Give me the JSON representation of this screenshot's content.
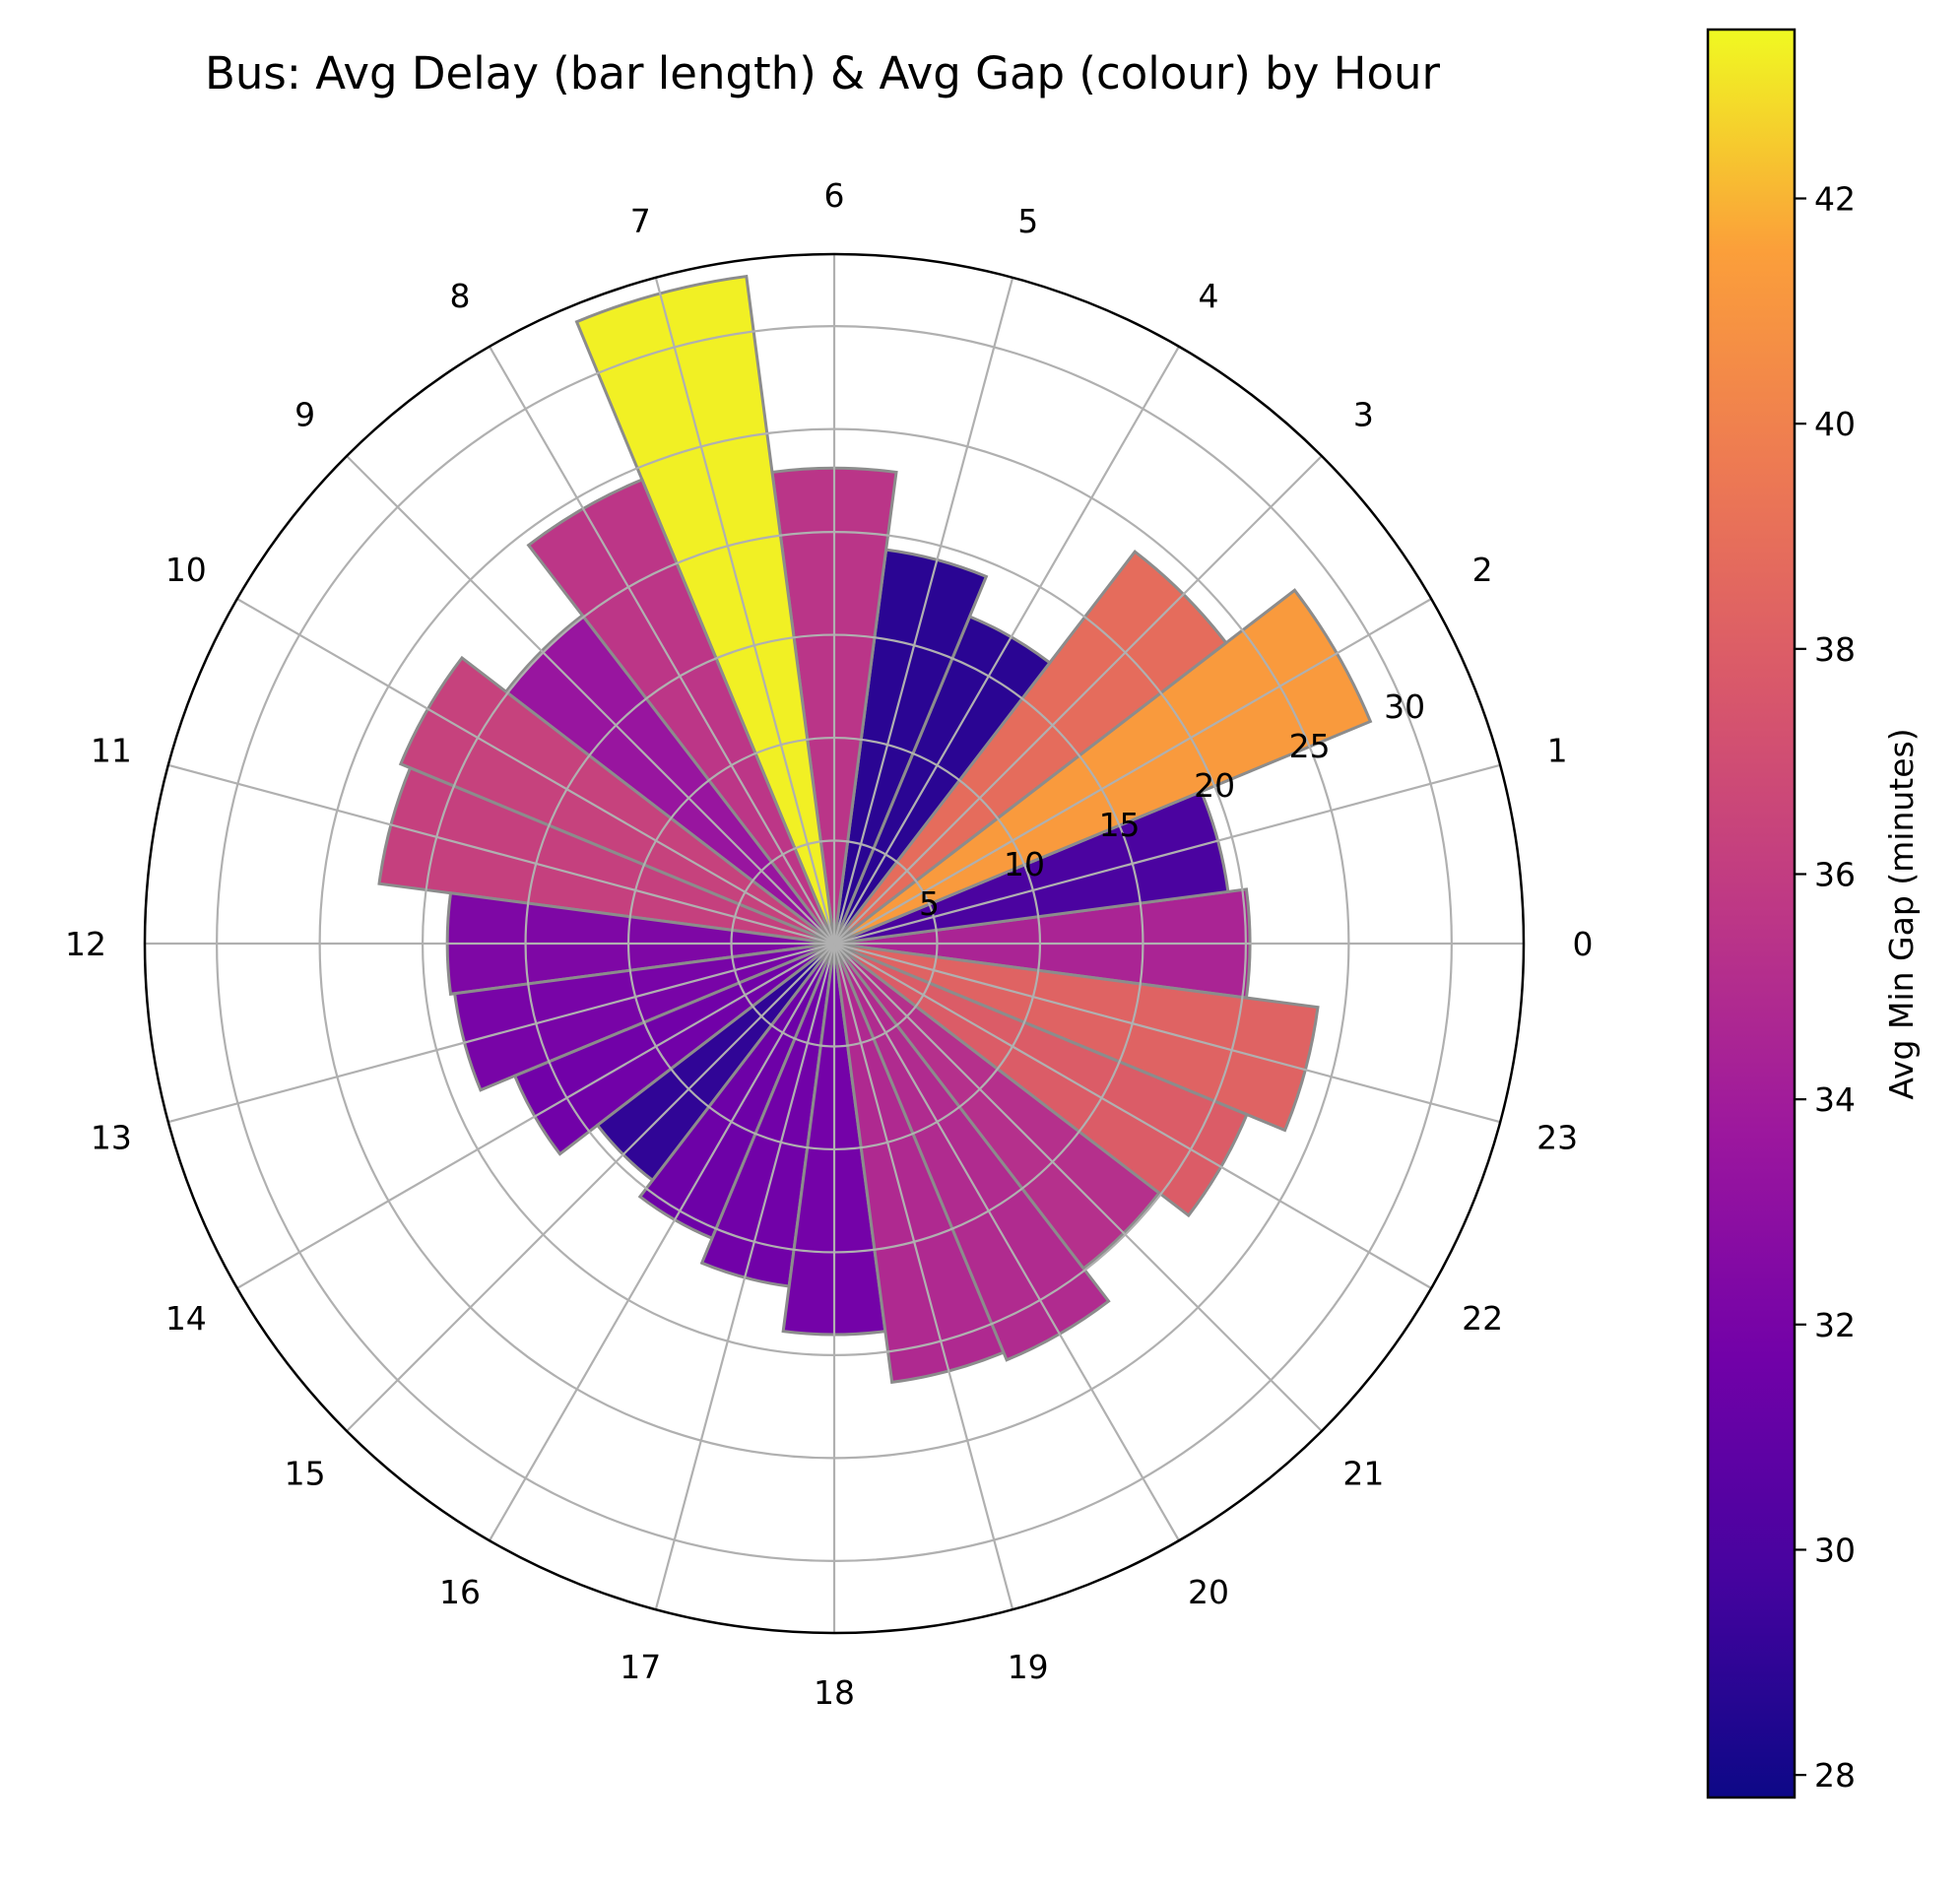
{
  "chart_data": {
    "type": "polar-bar",
    "title": "Bus: Avg Delay (bar length) & Avg Gap (colour) by Hour",
    "series": [
      {
        "name": "Avg Delay",
        "color_metric": "Avg Gap"
      }
    ],
    "hours": [
      "0",
      "1",
      "2",
      "3",
      "4",
      "5",
      "6",
      "7",
      "8",
      "9",
      "10",
      "11",
      "12",
      "13",
      "14",
      "15",
      "16",
      "17",
      "18",
      "19",
      "20",
      "21",
      "22",
      "23"
    ],
    "delay": [
      20.2,
      19.3,
      28.2,
      24.0,
      17.2,
      19.3,
      23.1,
      32.7,
      24.4,
      20.1,
      22.8,
      22.3,
      18.8,
      18.6,
      16.8,
      14.5,
      15.5,
      16.8,
      19.0,
      21.5,
      21.9,
      19.9,
      21.7,
      23.7
    ],
    "gap": [
      34.5,
      30.0,
      41.3,
      38.8,
      28.8,
      28.8,
      35.5,
      43.3,
      35.6,
      33.5,
      36.3,
      36.2,
      32.3,
      32.0,
      31.7,
      29.0,
      31.5,
      31.7,
      31.8,
      34.8,
      34.9,
      35.2,
      37.9,
      38.3
    ],
    "radial_ticks": [
      "5",
      "10",
      "15",
      "20",
      "25",
      "30"
    ],
    "rlim": [
      0,
      33.5
    ],
    "colorbar": {
      "label": "Avg Min Gap (minutes)",
      "ticks": [
        "28",
        "30",
        "32",
        "34",
        "36",
        "38",
        "40",
        "42"
      ],
      "range": [
        27.8,
        43.5
      ],
      "colormap": "plasma"
    },
    "grid": true
  }
}
